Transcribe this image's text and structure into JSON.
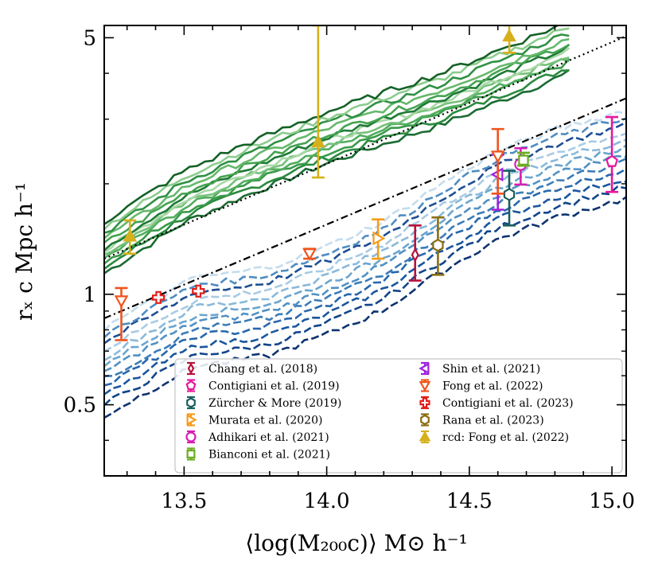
{
  "chart_data": {
    "type": "line",
    "xlabel": "⟨log(M₂₀₀c)⟩ M⊙ h⁻¹",
    "ylabel": "rₓ c Mpc h⁻¹",
    "xlim": [
      13.22,
      15.05
    ],
    "ylim": [
      0.32,
      5.4
    ],
    "yscale": "log",
    "xticks": [
      13.5,
      14.0,
      14.5,
      15.0
    ],
    "xtick_labels": [
      "13.5",
      "14.0",
      "14.5",
      "15.0"
    ],
    "yticks": [
      0.5,
      1,
      5
    ],
    "ytick_labels": [
      "0.5",
      "1",
      "5"
    ],
    "legend_position": "bottom-right",
    "reference_lines": [
      {
        "name": "dotted",
        "style": "dotted",
        "x": [
          13.22,
          15.05
        ],
        "y": [
          1.25,
          5.05
        ]
      },
      {
        "name": "dash-dot",
        "style": "dashdot",
        "x": [
          13.22,
          15.05
        ],
        "y": [
          0.86,
          3.42
        ]
      }
    ],
    "green_curves": {
      "x": [
        13.22,
        13.5,
        13.7,
        14.0,
        14.2,
        14.4,
        14.6,
        14.85
      ],
      "base": [
        1.28,
        1.76,
        2.06,
        2.55,
        2.88,
        3.25,
        3.75,
        4.5
      ],
      "offsets": [
        -0.05,
        -0.035,
        -0.02,
        -0.01,
        0,
        0.01,
        0.02,
        0.03,
        0.045,
        0.06,
        0.075,
        0.09
      ]
    },
    "blue_curves": {
      "x": [
        13.22,
        13.4,
        13.55,
        13.65,
        13.8,
        14.0,
        14.2,
        14.4,
        14.6,
        14.8,
        15.05
      ],
      "base": [
        0.6,
        0.72,
        0.83,
        0.84,
        0.88,
        1.0,
        1.17,
        1.48,
        1.82,
        2.08,
        2.35
      ],
      "offsets": [
        -0.11,
        -0.08,
        -0.055,
        -0.03,
        -0.01,
        0.01,
        0.03,
        0.05,
        0.07,
        0.09,
        0.11,
        0.13
      ]
    },
    "series": [
      {
        "name": "Chang et al. (2018)",
        "color": "#b5123a",
        "marker": "diamond",
        "x": 14.31,
        "y": 1.28,
        "ylo": 1.09,
        "yhi": 1.54
      },
      {
        "name": "Contigiani et al. (2019)",
        "color": "#e8179c",
        "marker": "pentagon",
        "x": 15.0,
        "y": 2.3,
        "ylo": 1.9,
        "yhi": 3.04
      },
      {
        "name": "Zürcher & More (2019)",
        "color": "#1a5e5e",
        "marker": "hexagon",
        "x": 14.64,
        "y": 1.87,
        "ylo": 1.54,
        "yhi": 2.17
      },
      {
        "name": "Murata et al. (2020)",
        "color": "#f59b1c",
        "marker": "triangle-right",
        "x": 14.18,
        "y": 1.42,
        "ylo": 1.25,
        "yhi": 1.6
      },
      {
        "name": "Adhikari et al. (2021)",
        "color": "#d61fb2",
        "marker": "circle",
        "x": 14.68,
        "y": 2.26,
        "ylo": 1.99,
        "yhi": 2.5
      },
      {
        "name": "Bianconi et al. (2021)",
        "color": "#6aad22",
        "marker": "square",
        "x": 14.69,
        "y": 2.32,
        "ylo": 2.24,
        "yhi": 2.43
      },
      {
        "name": "Shin et al. (2021)",
        "color": "#a020e0",
        "marker": "triangle-left",
        "x": 14.6,
        "y": 2.12,
        "ylo": 1.7,
        "yhi": 2.4
      },
      {
        "name": "Fong et al. (2022)",
        "color": "#f0541c",
        "marker": "triangle-down",
        "x": [
          13.28,
          13.94,
          14.6
        ],
        "y": [
          0.96,
          1.29,
          2.38
        ],
        "ylo": [
          0.75,
          1.25,
          1.88
        ],
        "yhi": [
          1.04,
          1.33,
          2.82
        ]
      },
      {
        "name": "Contigiani et al. (2023)",
        "color": "#e0201c",
        "marker": "plus",
        "x": [
          13.41,
          13.55
        ],
        "y": [
          0.98,
          1.02
        ],
        "ylo": [
          0.97,
          1.01
        ],
        "yhi": [
          0.99,
          1.03
        ]
      },
      {
        "name": "Rana et al. (2023)",
        "color": "#8a6d12",
        "marker": "hexagon",
        "x": 14.39,
        "y": 1.36,
        "ylo": 1.13,
        "yhi": 1.62
      },
      {
        "name": "rcd: Fong et al. (2022)",
        "color": "#d6b01c",
        "marker": "triangle-up",
        "x": [
          13.31,
          13.97,
          14.64
        ],
        "y": [
          1.44,
          2.6,
          5.05
        ],
        "ylo": [
          1.29,
          2.08,
          4.55
        ],
        "yhi": [
          1.59,
          5.4,
          5.4
        ]
      }
    ]
  },
  "legend": {
    "col1": [
      "Chang et al. (2018)",
      "Contigiani et al. (2019)",
      "Zürcher & More (2019)",
      "Murata et al. (2020)",
      "Adhikari et al. (2021)",
      "Bianconi et al. (2021)"
    ],
    "col2": [
      "Shin et al. (2021)",
      "Fong et al. (2022)",
      "Contigiani et al. (2023)",
      "Rana et al. (2023)",
      "rcd: Fong et al. (2022)"
    ]
  }
}
